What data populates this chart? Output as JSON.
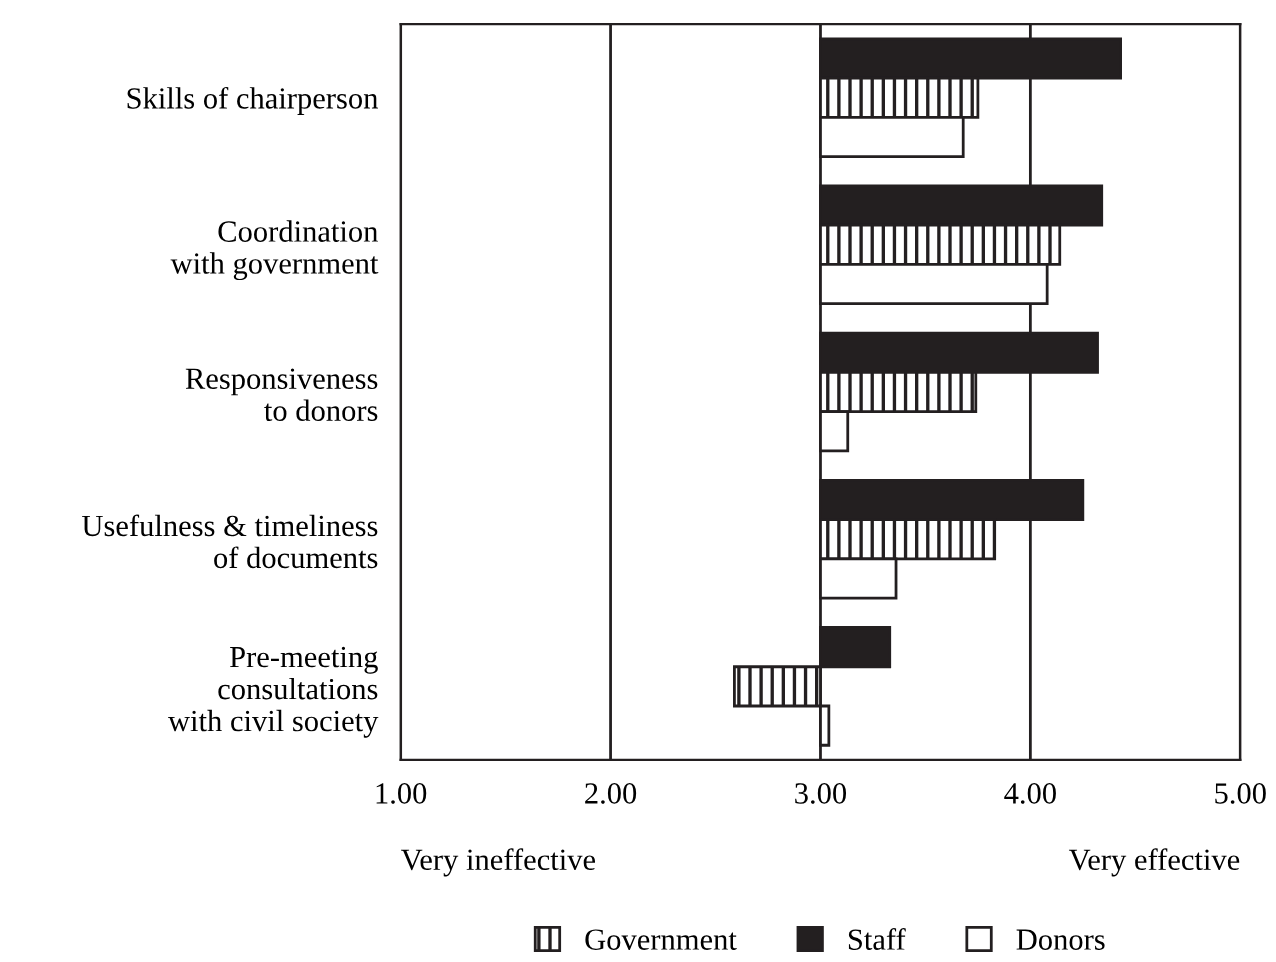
{
  "chart_data": {
    "type": "bar",
    "orientation": "horizontal",
    "categories": [
      "Skills of chairperson",
      "Coordination\nwith government",
      "Responsiveness\nto donors",
      "Usefulness & timeliness\nof documents",
      "Pre-meeting\nconsultations\nwith civil society"
    ],
    "series": [
      {
        "name": "Staff",
        "color": "#231f20",
        "base": [
          3,
          3,
          3,
          3,
          3
        ],
        "values": [
          1.43,
          1.34,
          1.32,
          1.25,
          0.33
        ]
      },
      {
        "name": "Government",
        "color": "#231f20",
        "base": [
          3,
          3,
          3,
          3,
          3
        ],
        "values": [
          0.75,
          1.14,
          0.74,
          0.83,
          -0.41
        ]
      },
      {
        "name": "Donors",
        "color": "#ffffff",
        "base": [
          3,
          3,
          3,
          3,
          3
        ],
        "values": [
          0.68,
          1.08,
          0.13,
          0.36,
          0.04
        ]
      }
    ],
    "xlim": [
      1,
      5
    ],
    "xticks": [
      {
        "value": 1,
        "label": "1.00"
      },
      {
        "value": 2,
        "label": "2.00"
      },
      {
        "value": 3,
        "label": "3.00"
      },
      {
        "value": 4,
        "label": "4.00"
      },
      {
        "value": 5,
        "label": "5.00"
      }
    ],
    "grid": "x",
    "legend": "bottom",
    "annotations": [
      "Very ineffective",
      "Very effective"
    ]
  }
}
